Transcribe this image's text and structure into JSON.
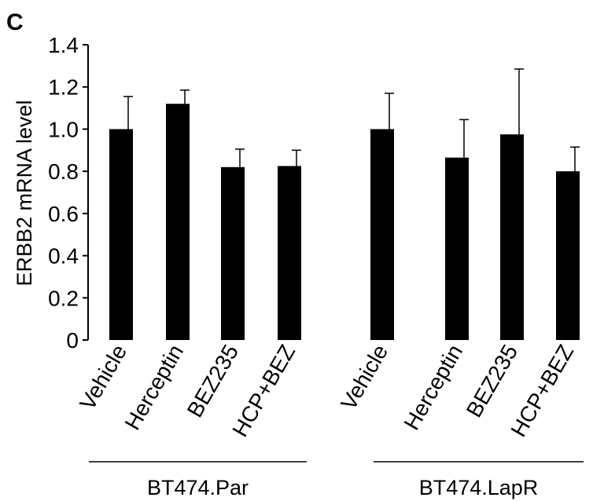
{
  "panel_label": "C",
  "chart_data": {
    "type": "bar",
    "title": "",
    "xlabel": "",
    "ylabel": "ERBB2 mRNA level",
    "ylim": [
      0,
      1.4
    ],
    "yticks": [
      "0",
      "0.2",
      "0.4",
      "0.6",
      "0.8",
      "1.0",
      "1.2",
      "1.4"
    ],
    "bar_color": "#000000",
    "error_bars": "upper",
    "groups": [
      {
        "name": "BT474.Par",
        "categories": [
          "Vehicle",
          "Herceptin",
          "BEZ235",
          "HCP+BEZ"
        ],
        "values": [
          1.0,
          1.12,
          0.82,
          0.825
        ],
        "errors": [
          0.155,
          0.065,
          0.085,
          0.075
        ]
      },
      {
        "name": "BT474.LapR",
        "categories": [
          "Vehicle",
          "Herceptin",
          "BEZ235",
          "HCP+BEZ"
        ],
        "values": [
          1.0,
          0.865,
          0.975,
          0.8
        ],
        "errors": [
          0.17,
          0.18,
          0.31,
          0.115
        ]
      }
    ]
  }
}
